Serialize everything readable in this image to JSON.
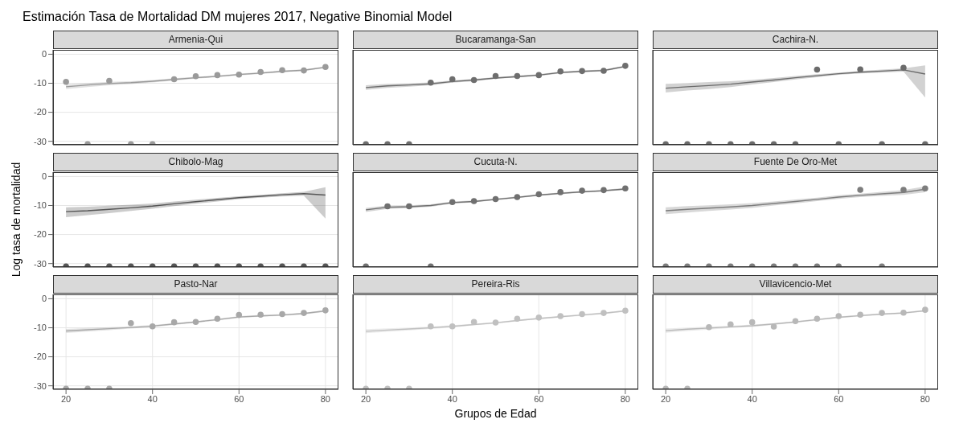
{
  "chart_data": [
    {
      "type": "line",
      "title": "Armenia-Qui",
      "annotations": [
        "Estimación Tasa de Mortalidad DM mujeres 2017, Negative Binomial Model"
      ],
      "x": [
        20,
        25,
        30,
        35,
        40,
        45,
        50,
        55,
        60,
        65,
        70,
        75,
        80
      ],
      "xlim": [
        17,
        83
      ],
      "xticks": [
        20,
        40,
        60,
        80
      ],
      "ylim": [
        -31.2,
        1.5
      ],
      "yticks": [
        0,
        -10,
        -20,
        -30
      ],
      "grid": true,
      "tick_labels": "y",
      "series": [
        {
          "type": "scatter",
          "marker": "circle",
          "color": "#9a9a9a",
          "values": [
            -9.5,
            -31,
            -9.2,
            -31,
            -31,
            -8.6,
            -7.6,
            -7.2,
            -7.0,
            -6.1,
            -5.5,
            -5.6,
            -4.4
          ]
        },
        {
          "color": "#9a9a9a",
          "values": [
            -11.2,
            -10.6,
            -10.1,
            -9.8,
            -9.3,
            -8.7,
            -8.1,
            -7.6,
            -7.0,
            -6.5,
            -5.9,
            -5.5,
            -4.5
          ],
          "lower": [
            -12.0,
            -11.3,
            -10.7,
            -10.3,
            -9.7,
            -9.1,
            -8.4,
            -7.9,
            -7.3,
            -6.8,
            -6.2,
            -5.8,
            -4.8
          ],
          "upper": [
            -10.4,
            -9.9,
            -9.5,
            -9.3,
            -8.9,
            -8.3,
            -7.8,
            -7.3,
            -6.7,
            -6.2,
            -5.6,
            -5.2,
            -4.2
          ]
        }
      ]
    },
    {
      "type": "line",
      "title": "Bucaramanga-San",
      "x": [
        20,
        25,
        30,
        35,
        40,
        45,
        50,
        55,
        60,
        65,
        70,
        75,
        80
      ],
      "xlim": [
        17,
        83
      ],
      "xticks": [
        20,
        40,
        60,
        80
      ],
      "ylim": [
        -31.2,
        1.5
      ],
      "yticks": [
        0,
        -10,
        -20,
        -30
      ],
      "grid": true,
      "tick_labels": false,
      "series": [
        {
          "type": "scatter",
          "marker": "circle",
          "color": "#6e6e6e",
          "values": [
            -31,
            -31,
            -31,
            -9.8,
            -8.6,
            -8.9,
            -7.5,
            -7.5,
            -7.2,
            -5.9,
            -5.8,
            -5.7,
            -4.0
          ]
        },
        {
          "color": "#6e6e6e",
          "values": [
            -11.5,
            -10.9,
            -10.6,
            -10.2,
            -9.4,
            -8.9,
            -8.2,
            -7.7,
            -7.2,
            -6.3,
            -5.9,
            -5.6,
            -4.2
          ],
          "lower": [
            -12.3,
            -11.6,
            -11.2,
            -10.7,
            -9.8,
            -9.3,
            -8.5,
            -8.0,
            -7.5,
            -6.6,
            -6.2,
            -5.9,
            -4.5
          ],
          "upper": [
            -10.7,
            -10.2,
            -10.0,
            -9.7,
            -9.0,
            -8.5,
            -7.9,
            -7.4,
            -6.9,
            -6.0,
            -5.6,
            -5.3,
            -3.9
          ]
        }
      ]
    },
    {
      "type": "line",
      "title": "Cachira-N.",
      "x": [
        20,
        25,
        30,
        35,
        40,
        45,
        50,
        55,
        60,
        65,
        70,
        75,
        80
      ],
      "xlim": [
        17,
        83
      ],
      "xticks": [
        20,
        40,
        60,
        80
      ],
      "ylim": [
        -31.2,
        1.5
      ],
      "yticks": [
        0,
        -10,
        -20,
        -30
      ],
      "grid": true,
      "tick_labels": false,
      "series": [
        {
          "type": "scatter",
          "marker": "circle",
          "color": "#6b6b6b",
          "values": [
            -31,
            -31,
            -31,
            -31,
            -31,
            -31,
            -31,
            -5.3,
            -31,
            -5.2,
            -31,
            -4.7,
            -31
          ]
        },
        {
          "color": "#6b6b6b",
          "values": [
            -11.7,
            -11.2,
            -10.8,
            -10.3,
            -9.6,
            -8.9,
            -8.1,
            -7.4,
            -6.7,
            -6.2,
            -5.8,
            -5.4,
            -6.8
          ],
          "lower": [
            -13.2,
            -12.5,
            -12.0,
            -11.3,
            -10.4,
            -9.6,
            -8.7,
            -7.9,
            -7.1,
            -6.6,
            -6.3,
            -6.0,
            -14.9
          ],
          "upper": [
            -10.2,
            -9.9,
            -9.6,
            -9.3,
            -8.8,
            -8.2,
            -7.5,
            -6.9,
            -6.3,
            -5.8,
            -5.3,
            -4.9,
            -3.8
          ]
        }
      ]
    },
    {
      "type": "line",
      "title": "Chibolo-Mag",
      "ylabel": "Log tasa de mortalidad",
      "x": [
        20,
        25,
        30,
        35,
        40,
        45,
        50,
        55,
        60,
        65,
        70,
        75,
        80
      ],
      "xlim": [
        17,
        83
      ],
      "xticks": [
        20,
        40,
        60,
        80
      ],
      "ylim": [
        -31.2,
        1.5
      ],
      "yticks": [
        0,
        -10,
        -20,
        -30
      ],
      "grid": true,
      "tick_labels": "y",
      "series": [
        {
          "type": "scatter",
          "marker": "circle",
          "color": "#555555",
          "values": [
            -31,
            -31,
            -31,
            -31,
            -31,
            -31,
            -31,
            -31,
            -31,
            -31,
            -31,
            -31,
            -31
          ]
        },
        {
          "color": "#555555",
          "values": [
            -12.1,
            -11.8,
            -11.3,
            -10.8,
            -10.2,
            -9.4,
            -8.7,
            -8.0,
            -7.3,
            -6.8,
            -6.3,
            -5.9,
            -6.4
          ],
          "lower": [
            -14.0,
            -13.3,
            -12.6,
            -11.9,
            -11.1,
            -10.2,
            -9.4,
            -8.6,
            -7.8,
            -7.3,
            -6.9,
            -6.6,
            -14.5
          ],
          "upper": [
            -10.6,
            -10.4,
            -10.1,
            -9.7,
            -9.3,
            -8.6,
            -8.0,
            -7.4,
            -6.8,
            -6.3,
            -5.8,
            -5.3,
            -3.7
          ]
        }
      ]
    },
    {
      "type": "line",
      "title": "Cucuta-N.",
      "x": [
        20,
        25,
        30,
        35,
        40,
        45,
        50,
        55,
        60,
        65,
        70,
        75,
        80
      ],
      "xlim": [
        17,
        83
      ],
      "xticks": [
        20,
        40,
        60,
        80
      ],
      "ylim": [
        -31.2,
        1.5
      ],
      "yticks": [
        0,
        -10,
        -20,
        -30
      ],
      "grid": true,
      "tick_labels": false,
      "series": [
        {
          "type": "scatter",
          "marker": "circle",
          "color": "#707070",
          "values": [
            -31,
            -10.3,
            -10.3,
            -31,
            -8.8,
            -8.5,
            -7.8,
            -7.1,
            -6.1,
            -5.4,
            -4.9,
            -4.7,
            -4.1
          ]
        },
        {
          "color": "#707070",
          "values": [
            -11.5,
            -10.6,
            -10.4,
            -10.0,
            -9.0,
            -8.6,
            -7.9,
            -7.2,
            -6.4,
            -5.8,
            -5.3,
            -4.9,
            -4.3
          ],
          "lower": [
            -12.2,
            -11.2,
            -10.9,
            -10.4,
            -9.4,
            -8.9,
            -8.2,
            -7.5,
            -6.7,
            -6.1,
            -5.6,
            -5.2,
            -4.6
          ],
          "upper": [
            -10.8,
            -10.0,
            -9.9,
            -9.6,
            -8.6,
            -8.3,
            -7.6,
            -6.9,
            -6.1,
            -5.5,
            -5.0,
            -4.6,
            -4.0
          ]
        }
      ]
    },
    {
      "type": "line",
      "title": "Fuente De Oro-Met",
      "x": [
        20,
        25,
        30,
        35,
        40,
        45,
        50,
        55,
        60,
        65,
        70,
        75,
        80
      ],
      "xlim": [
        17,
        83
      ],
      "xticks": [
        20,
        40,
        60,
        80
      ],
      "ylim": [
        -31.2,
        1.5
      ],
      "yticks": [
        0,
        -10,
        -20,
        -30
      ],
      "grid": true,
      "tick_labels": false,
      "series": [
        {
          "type": "scatter",
          "marker": "circle",
          "color": "#7d7d7d",
          "values": [
            -31,
            -31,
            -31,
            -31,
            -31,
            -31,
            -31,
            -31,
            -31,
            -4.6,
            -31,
            -4.6,
            -4.1
          ]
        },
        {
          "color": "#7d7d7d",
          "values": [
            -11.8,
            -11.3,
            -10.9,
            -10.5,
            -10.0,
            -9.3,
            -8.6,
            -7.9,
            -7.1,
            -6.5,
            -6.0,
            -5.5,
            -4.4
          ],
          "lower": [
            -13.0,
            -12.4,
            -11.9,
            -11.4,
            -10.8,
            -10.0,
            -9.3,
            -8.5,
            -7.7,
            -7.1,
            -6.7,
            -6.3,
            -5.4
          ],
          "upper": [
            -10.6,
            -10.2,
            -9.9,
            -9.6,
            -9.2,
            -8.6,
            -7.9,
            -7.3,
            -6.5,
            -5.9,
            -5.3,
            -4.7,
            -3.4
          ]
        }
      ]
    },
    {
      "type": "line",
      "title": "Pasto-Nar",
      "x": [
        20,
        25,
        30,
        35,
        40,
        45,
        50,
        55,
        60,
        65,
        70,
        75,
        80
      ],
      "xlim": [
        17,
        83
      ],
      "xticks": [
        20,
        40,
        60,
        80
      ],
      "ylim": [
        -31.2,
        1.5
      ],
      "yticks": [
        0,
        -10,
        -20,
        -30
      ],
      "grid": true,
      "series": [
        {
          "type": "scatter",
          "marker": "circle",
          "color": "#a8a8a8",
          "values": [
            -31,
            -31,
            -31,
            -8.4,
            -9.5,
            -8.1,
            -8.0,
            -6.9,
            -5.6,
            -5.5,
            -5.3,
            -4.9,
            -4.0
          ]
        },
        {
          "color": "#a8a8a8",
          "values": [
            -11.1,
            -10.7,
            -10.3,
            -9.9,
            -9.4,
            -8.7,
            -8.0,
            -7.2,
            -6.3,
            -5.9,
            -5.6,
            -5.1,
            -4.2
          ],
          "lower": [
            -11.8,
            -11.3,
            -10.8,
            -10.3,
            -9.8,
            -9.0,
            -8.3,
            -7.5,
            -6.6,
            -6.2,
            -5.9,
            -5.4,
            -4.5
          ],
          "upper": [
            -10.4,
            -10.1,
            -9.8,
            -9.5,
            -9.0,
            -8.4,
            -7.7,
            -6.9,
            -6.0,
            -5.6,
            -5.3,
            -4.8,
            -3.9
          ]
        }
      ]
    },
    {
      "type": "line",
      "title": "Pereira-Ris",
      "xlabel": "Grupos de Edad",
      "x": [
        20,
        25,
        30,
        35,
        40,
        45,
        50,
        55,
        60,
        65,
        70,
        75,
        80
      ],
      "xlim": [
        17,
        83
      ],
      "xticks": [
        20,
        40,
        60,
        80
      ],
      "ylim": [
        -31.2,
        1.5
      ],
      "yticks": [
        0,
        -10,
        -20,
        -30
      ],
      "grid": true,
      "tick_labels": "x",
      "series": [
        {
          "type": "scatter",
          "marker": "circle",
          "color": "#c0c0c0",
          "values": [
            -31,
            -31,
            -31,
            -9.5,
            -9.5,
            -8.0,
            -8.2,
            -6.9,
            -6.5,
            -6.0,
            -5.3,
            -4.9,
            -4.1
          ]
        },
        {
          "color": "#c0c0c0",
          "values": [
            -11.2,
            -10.8,
            -10.4,
            -10.0,
            -9.5,
            -8.9,
            -8.3,
            -7.5,
            -6.8,
            -6.2,
            -5.6,
            -5.0,
            -4.2
          ],
          "lower": [
            -11.9,
            -11.4,
            -10.9,
            -10.4,
            -9.9,
            -9.2,
            -8.6,
            -7.8,
            -7.1,
            -6.5,
            -5.9,
            -5.3,
            -4.5
          ],
          "upper": [
            -10.5,
            -10.2,
            -9.9,
            -9.6,
            -9.1,
            -8.6,
            -8.0,
            -7.2,
            -6.5,
            -5.9,
            -5.3,
            -4.7,
            -3.9
          ]
        }
      ]
    },
    {
      "type": "line",
      "title": "Villavicencio-Met",
      "x": [
        20,
        25,
        30,
        35,
        40,
        45,
        50,
        55,
        60,
        65,
        70,
        75,
        80
      ],
      "xlim": [
        17,
        83
      ],
      "xticks": [
        20,
        40,
        60,
        80
      ],
      "ylim": [
        -31.2,
        1.5
      ],
      "yticks": [
        0,
        -10,
        -20,
        -30
      ],
      "grid": true,
      "tick_labels": "x",
      "series": [
        {
          "type": "scatter",
          "marker": "circle",
          "color": "#b8b8b8",
          "values": [
            -31,
            -31,
            -9.8,
            -8.8,
            -8.1,
            -9.6,
            -7.7,
            -6.9,
            -6.0,
            -5.5,
            -4.9,
            -4.8,
            -3.8
          ]
        },
        {
          "color": "#b8b8b8",
          "values": [
            -11.0,
            -10.5,
            -10.1,
            -9.7,
            -9.3,
            -8.7,
            -8.0,
            -7.2,
            -6.4,
            -5.8,
            -5.3,
            -4.9,
            -4.1
          ],
          "lower": [
            -11.7,
            -11.1,
            -10.6,
            -10.1,
            -9.7,
            -9.0,
            -8.3,
            -7.5,
            -6.7,
            -6.1,
            -5.6,
            -5.2,
            -4.4
          ],
          "upper": [
            -10.3,
            -9.9,
            -9.6,
            -9.3,
            -8.9,
            -8.4,
            -7.7,
            -6.9,
            -6.1,
            -5.5,
            -5.0,
            -4.6,
            -3.8
          ]
        }
      ]
    }
  ]
}
